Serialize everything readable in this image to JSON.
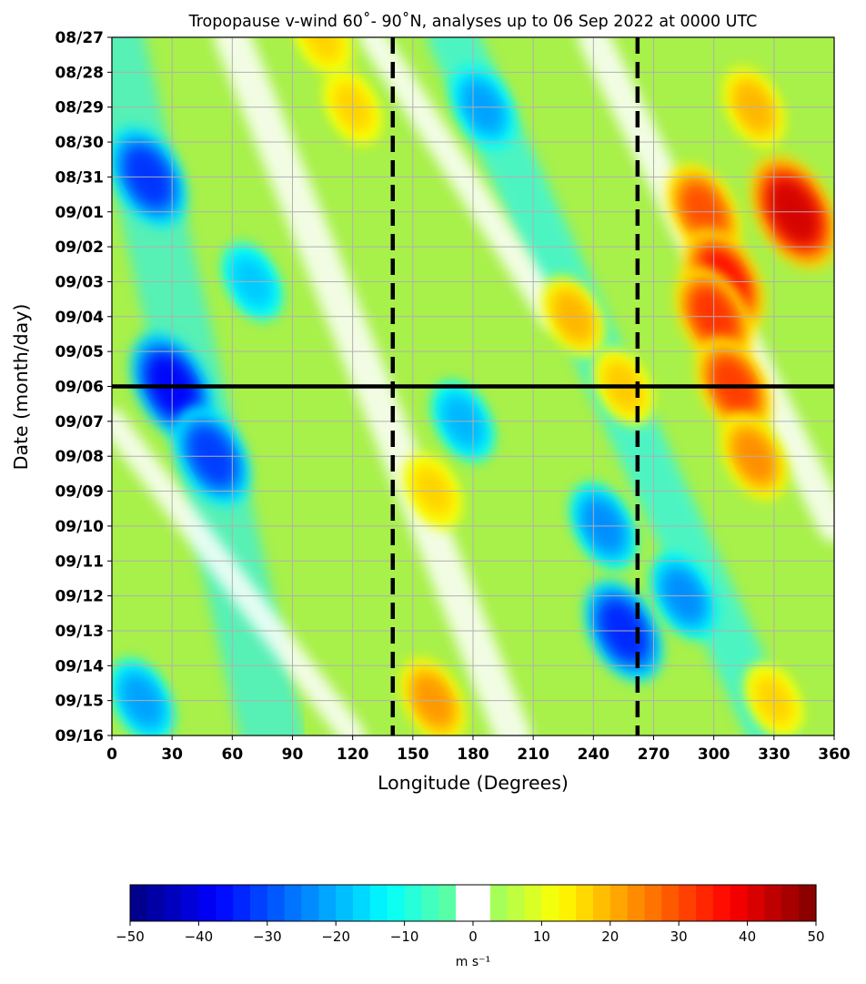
{
  "chart_data": {
    "type": "heatmap",
    "title": "Tropopause v-wind 60˚- 90˚N, analyses up to 06 Sep 2022 at 0000 UTC",
    "xlabel": "Longitude (Degrees)",
    "ylabel": "Date (month/day)",
    "x_ticks": [
      0,
      30,
      60,
      90,
      120,
      150,
      180,
      210,
      240,
      270,
      300,
      330,
      360
    ],
    "xlim": [
      0,
      360
    ],
    "y_ticks": [
      "08/27",
      "08/28",
      "08/29",
      "08/30",
      "08/31",
      "09/01",
      "09/02",
      "09/03",
      "09/04",
      "09/05",
      "09/06",
      "09/07",
      "09/08",
      "09/09",
      "09/10",
      "09/11",
      "09/12",
      "09/13",
      "09/14",
      "09/15",
      "09/16"
    ],
    "grid": true,
    "analysis_line_date": "09/06",
    "reference_longitudes": [
      140,
      262
    ],
    "colorbar": {
      "min": -50,
      "max": 50,
      "levels": 40,
      "ticks": [
        -50,
        -40,
        -30,
        -20,
        -10,
        0,
        10,
        20,
        30,
        40,
        50
      ],
      "tick_labels": [
        "−50",
        "−40",
        "−30",
        "−20",
        "−10",
        "0",
        "10",
        "20",
        "30",
        "40",
        "50"
      ],
      "label": "m s⁻¹",
      "colormap": "jet",
      "masked_range": [
        -2.5,
        2.5
      ]
    },
    "wind_features": [
      {
        "lon": 18,
        "date": "08/31",
        "v": -33
      },
      {
        "lon": 30,
        "date": "09/06",
        "v": -38
      },
      {
        "lon": 50,
        "date": "09/08",
        "v": -32
      },
      {
        "lon": 15,
        "date": "09/15",
        "v": -22
      },
      {
        "lon": 70,
        "date": "09/03",
        "v": -18
      },
      {
        "lon": 185,
        "date": "08/29",
        "v": -22
      },
      {
        "lon": 175,
        "date": "09/07",
        "v": -20
      },
      {
        "lon": 245,
        "date": "09/10",
        "v": -24
      },
      {
        "lon": 255,
        "date": "09/13",
        "v": -34
      },
      {
        "lon": 285,
        "date": "09/12",
        "v": -24
      },
      {
        "lon": 160,
        "date": "09/15",
        "v": 23
      },
      {
        "lon": 160,
        "date": "09/09",
        "v": 17
      },
      {
        "lon": 230,
        "date": "09/04",
        "v": 20
      },
      {
        "lon": 255,
        "date": "09/06",
        "v": 18
      },
      {
        "lon": 105,
        "date": "08/27",
        "v": 17
      },
      {
        "lon": 120,
        "date": "08/29",
        "v": 17
      },
      {
        "lon": 295,
        "date": "09/01",
        "v": 30
      },
      {
        "lon": 305,
        "date": "09/03",
        "v": 37
      },
      {
        "lon": 300,
        "date": "09/04",
        "v": 33
      },
      {
        "lon": 310,
        "date": "09/06",
        "v": 32
      },
      {
        "lon": 320,
        "date": "09/08",
        "v": 24
      },
      {
        "lon": 340,
        "date": "09/01",
        "v": 42
      },
      {
        "lon": 320,
        "date": "08/29",
        "v": 20
      },
      {
        "lon": 330,
        "date": "09/15",
        "v": 17
      }
    ]
  }
}
